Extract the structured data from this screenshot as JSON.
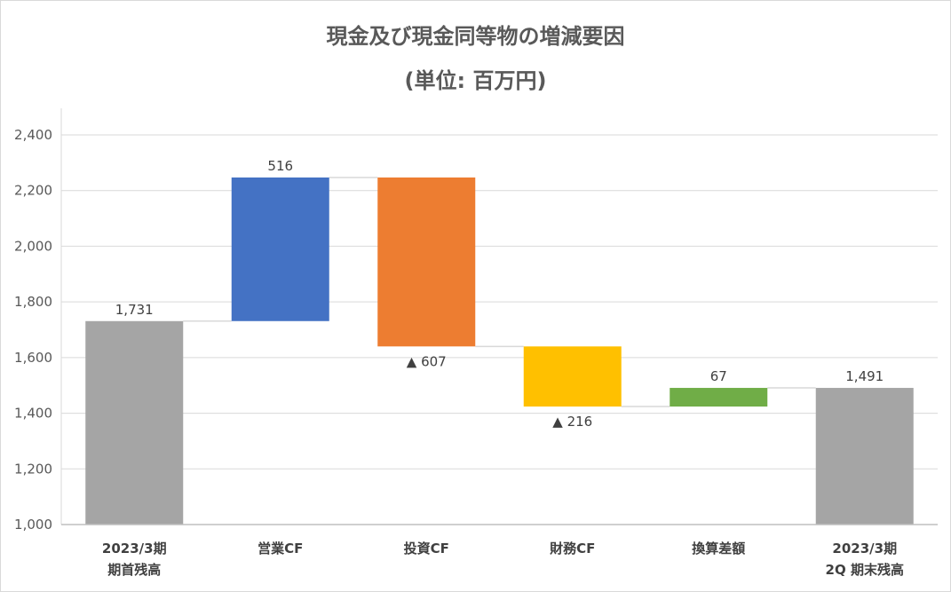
{
  "title_line1": "現金及び現金同等物の増減要因",
  "title_line2": "(単位: 百万円)",
  "chart_data": {
    "type": "bar",
    "variant": "waterfall",
    "ylim": [
      1000,
      2400
    ],
    "yticks": [
      1000,
      1200,
      1400,
      1600,
      1800,
      2000,
      2200,
      2400
    ],
    "ytick_labels": [
      "1,000",
      "1,200",
      "1,400",
      "1,600",
      "1,800",
      "2,000",
      "2,200",
      "2,400"
    ],
    "grid": true,
    "categories": [
      [
        "2023/3期",
        "期首残高"
      ],
      [
        "営業CF"
      ],
      [
        "投資CF"
      ],
      [
        "財務CF"
      ],
      [
        "換算差額"
      ],
      [
        "2023/3期",
        "2Q 期末残高"
      ]
    ],
    "bars": [
      {
        "base": 1000,
        "top": 1731,
        "label": "1,731",
        "color": "#a5a5a5",
        "label_pos": "above"
      },
      {
        "base": 1731,
        "top": 2247,
        "label": "516",
        "color": "#4472c4",
        "label_pos": "above"
      },
      {
        "base": 1640,
        "top": 2247,
        "label": "▲ 607",
        "color": "#ed7d31",
        "label_pos": "below"
      },
      {
        "base": 1424,
        "top": 1640,
        "label": "▲ 216",
        "color": "#ffc000",
        "label_pos": "below"
      },
      {
        "base": 1424,
        "top": 1491,
        "label": "67",
        "color": "#70ad47",
        "label_pos": "above"
      },
      {
        "base": 1000,
        "top": 1491,
        "label": "1,491",
        "color": "#a5a5a5",
        "label_pos": "above"
      }
    ]
  }
}
